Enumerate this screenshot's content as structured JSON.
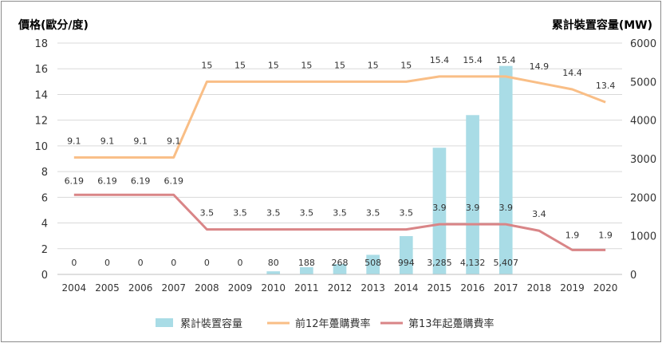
{
  "chart_data": {
    "type": "bar+line",
    "y_left_title": "價格(歐分/度)",
    "y_right_title": "累計裝置容量(MW)",
    "y_left_ticks": [
      "0",
      "2",
      "4",
      "6",
      "8",
      "10",
      "12",
      "14",
      "16",
      "18"
    ],
    "y_right_ticks": [
      "0",
      "1000",
      "2000",
      "3000",
      "4000",
      "5000",
      "6000"
    ],
    "ylim_left": [
      0,
      18
    ],
    "ylim_right": [
      0,
      6000
    ],
    "categories": [
      "2004",
      "2005",
      "2006",
      "2007",
      "2008",
      "2009",
      "2010",
      "2011",
      "2012",
      "2013",
      "2014",
      "2015",
      "2016",
      "2017",
      "2018",
      "2019",
      "2020"
    ],
    "bars": {
      "name": "累計裝置容量",
      "color": "#a9dce6",
      "axis": "right",
      "values": [
        0,
        0,
        0,
        0,
        0,
        0,
        80,
        188,
        268,
        508,
        994,
        3285,
        4132,
        5407,
        null,
        null,
        null
      ],
      "labels": [
        "0",
        "0",
        "0",
        "0",
        "0",
        "0",
        "80",
        "188",
        "268",
        "508",
        "994",
        "3,285",
        "4,132",
        "5,407",
        "",
        "",
        ""
      ]
    },
    "lines": [
      {
        "name": "前12年躉購費率",
        "color": "#f9be86",
        "axis": "left",
        "values": [
          9.1,
          9.1,
          9.1,
          9.1,
          15,
          15,
          15,
          15,
          15,
          15,
          15,
          15.4,
          15.4,
          15.4,
          14.9,
          14.4,
          13.4
        ],
        "labels": [
          "9.1",
          "9.1",
          "9.1",
          "9.1",
          "15",
          "15",
          "15",
          "15",
          "15",
          "15",
          "15",
          "15.4",
          "15.4",
          "15.4",
          "14.9",
          "14.4",
          "13.4"
        ]
      },
      {
        "name": "第13年起躉購費率",
        "color": "#d98587",
        "axis": "left",
        "values": [
          6.19,
          6.19,
          6.19,
          6.19,
          3.5,
          3.5,
          3.5,
          3.5,
          3.5,
          3.5,
          3.5,
          3.9,
          3.9,
          3.9,
          3.4,
          1.9,
          1.9
        ],
        "labels": [
          "6.19",
          "6.19",
          "6.19",
          "6.19",
          "3.5",
          "3.5",
          "3.5",
          "3.5",
          "3.5",
          "3.5",
          "3.5",
          "3.9",
          "3.9",
          "3.9",
          "3.4",
          "1.9",
          "1.9"
        ]
      }
    ],
    "grid": true,
    "legend_position": "bottom"
  }
}
